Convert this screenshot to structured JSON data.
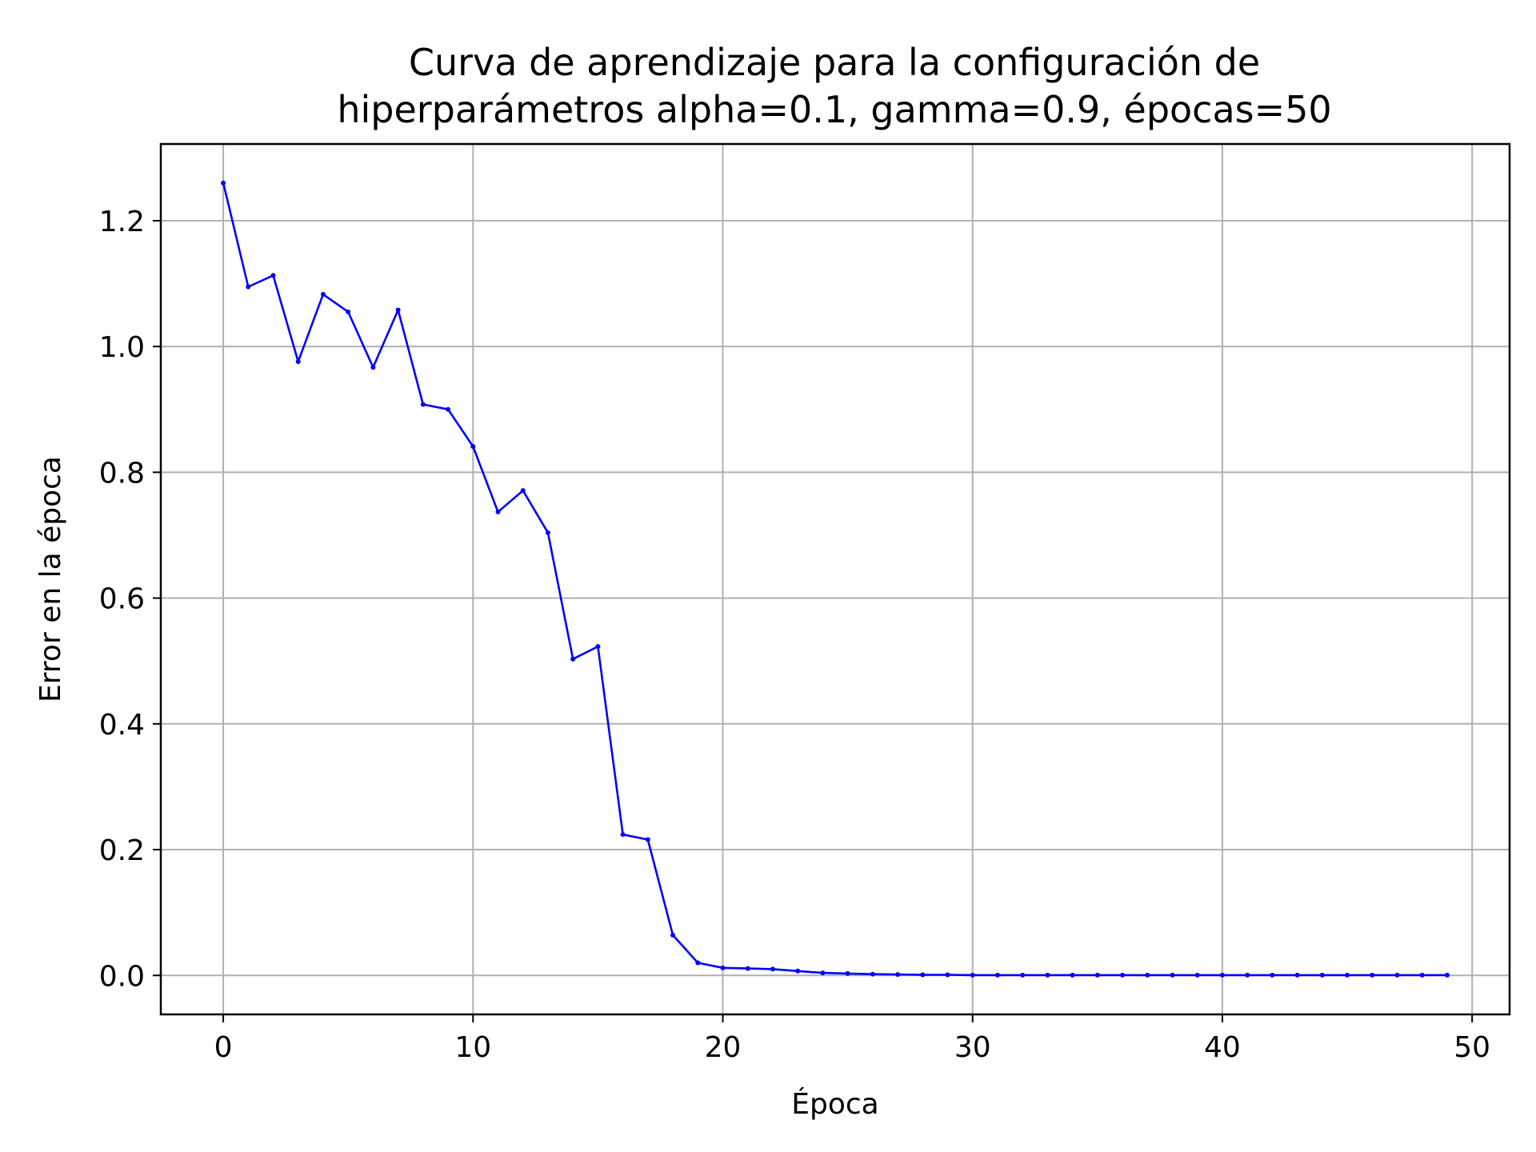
{
  "chart_data": {
    "type": "line",
    "title_lines": [
      "Curva de aprendizaje para la configuración de",
      "hiperparámetros alpha=0.1, gamma=0.9, épocas=50"
    ],
    "xlabel": "Época",
    "ylabel": "Error en la época",
    "xlim": [
      -2.5,
      51.5
    ],
    "ylim": [
      -0.062,
      1.322
    ],
    "xticks": [
      0,
      10,
      20,
      30,
      40,
      50
    ],
    "xtick_labels": [
      "0",
      "10",
      "20",
      "30",
      "40",
      "50"
    ],
    "yticks": [
      0.0,
      0.2,
      0.4,
      0.6,
      0.8,
      1.0,
      1.2
    ],
    "ytick_labels": [
      "0.0",
      "0.2",
      "0.4",
      "0.6",
      "0.8",
      "1.0",
      "1.2"
    ],
    "grid": true,
    "series": [
      {
        "color": "#0000ff",
        "marker": "point",
        "x": [
          0,
          1,
          2,
          3,
          4,
          5,
          6,
          7,
          8,
          9,
          10,
          11,
          12,
          13,
          14,
          15,
          16,
          17,
          18,
          19,
          20,
          21,
          22,
          23,
          24,
          25,
          26,
          27,
          28,
          29,
          30,
          31,
          32,
          33,
          34,
          35,
          36,
          37,
          38,
          39,
          40,
          41,
          42,
          43,
          44,
          45,
          46,
          47,
          48,
          49
        ],
        "y": [
          1.26,
          1.095,
          1.113,
          0.976,
          1.083,
          1.055,
          0.967,
          1.058,
          0.908,
          0.9,
          0.841,
          0.737,
          0.771,
          0.704,
          0.503,
          0.523,
          0.224,
          0.216,
          0.064,
          0.02,
          0.012,
          0.011,
          0.01,
          0.007,
          0.004,
          0.003,
          0.002,
          0.0015,
          0.001,
          0.001,
          0.0005,
          0.0005,
          0.0005,
          0.0005,
          0.0005,
          0.0005,
          0.0005,
          0.0005,
          0.0005,
          0.0005,
          0.0005,
          0.0005,
          0.0005,
          0.0005,
          0.0005,
          0.0005,
          0.0005,
          0.0005,
          0.0005,
          0.0005
        ]
      }
    ]
  }
}
